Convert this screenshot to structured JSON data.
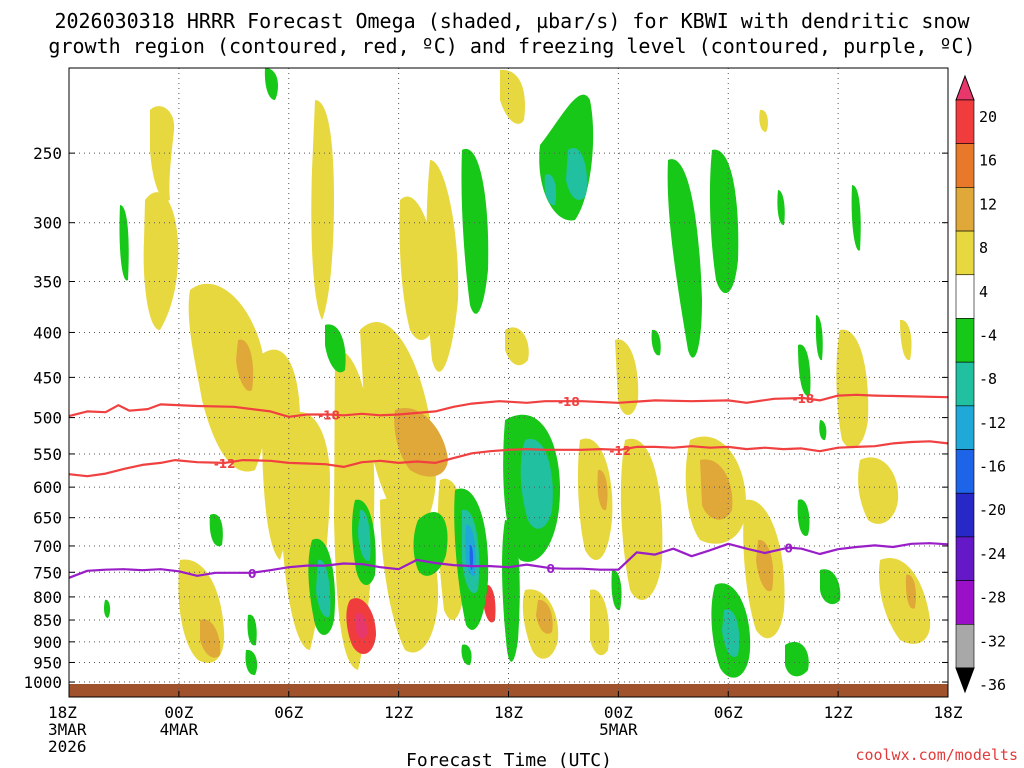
{
  "chart_data": {
    "type": "contour",
    "title_line1": "2026030318 HRRR Forecast Omega (shaded, µbar/s) for KBWI with dendritic snow",
    "title_line2": "growth region (contoured, red, ºC) and freezing level (contoured, purple, ºC)",
    "xlabel": "Forecast Time (UTC)",
    "credit": "coolwx.com/modelts",
    "x_hours": [
      0,
      48
    ],
    "x_ticks": [
      {
        "h": 0,
        "lines": [
          "18Z",
          "3MAR",
          "2026"
        ]
      },
      {
        "h": 6,
        "lines": [
          "00Z",
          "4MAR"
        ]
      },
      {
        "h": 12,
        "lines": [
          "06Z"
        ]
      },
      {
        "h": 18,
        "lines": [
          "12Z"
        ]
      },
      {
        "h": 24,
        "lines": [
          "18Z"
        ]
      },
      {
        "h": 30,
        "lines": [
          "00Z",
          "5MAR"
        ]
      },
      {
        "h": 36,
        "lines": [
          "06Z"
        ]
      },
      {
        "h": 42,
        "lines": [
          "12Z"
        ]
      },
      {
        "h": 48,
        "lines": [
          "18Z"
        ]
      }
    ],
    "y_ticks": [
      250,
      300,
      350,
      400,
      450,
      500,
      550,
      600,
      650,
      700,
      750,
      800,
      850,
      900,
      950,
      1000
    ],
    "pressure_range_hpa": [
      200,
      1040
    ],
    "colorbar": {
      "labels": [
        "20",
        "16",
        "12",
        "8",
        "4",
        "-4",
        "-8",
        "-12",
        "-16",
        "-20",
        "-24",
        "-28",
        "-32",
        "-36"
      ],
      "colors": [
        "#e8376a",
        "#f03c3c",
        "#e8782a",
        "#e0a838",
        "#e8d840",
        "#ffffff",
        "#18c818",
        "#20c0a0",
        "#20a8d8",
        "#1e64e8",
        "#2828c8",
        "#6418c8",
        "#9a10c8",
        "#a8a8a8",
        "#000000"
      ]
    },
    "series": [
      {
        "name": "-18",
        "color": "#f04040",
        "label_at_hours": [
          14.2,
          27.3,
          40.1
        ],
        "points": [
          [
            0,
            498
          ],
          [
            1,
            492
          ],
          [
            2,
            493
          ],
          [
            2.7,
            484
          ],
          [
            3.3,
            491
          ],
          [
            4.3,
            489
          ],
          [
            5,
            483
          ],
          [
            7,
            485
          ],
          [
            9,
            486
          ],
          [
            11,
            492
          ],
          [
            12,
            499
          ],
          [
            13,
            496
          ],
          [
            14.2,
            496
          ],
          [
            15,
            497
          ],
          [
            16,
            495
          ],
          [
            17,
            497
          ],
          [
            18,
            496
          ],
          [
            20,
            492
          ],
          [
            21,
            486
          ],
          [
            22,
            482
          ],
          [
            23.5,
            479
          ],
          [
            25,
            481
          ],
          [
            26,
            479
          ],
          [
            27.3,
            479
          ],
          [
            28,
            479
          ],
          [
            30,
            481
          ],
          [
            32,
            478
          ],
          [
            34,
            479
          ],
          [
            36,
            478
          ],
          [
            37,
            481
          ],
          [
            38.5,
            476
          ],
          [
            40.1,
            475
          ],
          [
            41,
            478
          ],
          [
            42,
            472
          ],
          [
            43,
            471
          ],
          [
            44,
            472
          ],
          [
            46,
            473
          ],
          [
            48,
            474
          ]
        ]
      },
      {
        "name": "-12",
        "color": "#f04040",
        "label_at_hours": [
          8.5,
          30.1
        ],
        "points": [
          [
            0,
            580
          ],
          [
            1,
            583
          ],
          [
            2,
            579
          ],
          [
            3,
            572
          ],
          [
            4,
            566
          ],
          [
            5,
            563
          ],
          [
            5.8,
            559
          ],
          [
            7,
            562
          ],
          [
            8.5,
            563
          ],
          [
            9.5,
            559
          ],
          [
            11,
            560
          ],
          [
            12,
            563
          ],
          [
            13,
            564
          ],
          [
            14,
            565
          ],
          [
            15,
            569
          ],
          [
            16,
            562
          ],
          [
            17,
            560
          ],
          [
            18,
            563
          ],
          [
            19,
            561
          ],
          [
            20,
            563
          ],
          [
            21,
            556
          ],
          [
            22,
            549
          ],
          [
            23,
            546
          ],
          [
            24,
            544
          ],
          [
            25,
            543
          ],
          [
            26,
            544
          ],
          [
            27,
            544
          ],
          [
            28,
            544
          ],
          [
            29,
            543
          ],
          [
            30.1,
            544
          ],
          [
            31,
            540
          ],
          [
            32,
            540
          ],
          [
            33,
            541
          ],
          [
            34,
            539
          ],
          [
            35,
            541
          ],
          [
            36,
            540
          ],
          [
            37,
            543
          ],
          [
            38,
            541
          ],
          [
            39,
            543
          ],
          [
            40,
            542
          ],
          [
            41,
            546
          ],
          [
            42,
            541
          ],
          [
            43,
            540
          ],
          [
            44,
            539
          ],
          [
            45,
            535
          ],
          [
            46,
            533
          ],
          [
            47,
            532
          ],
          [
            48,
            535
          ]
        ]
      },
      {
        "name": "0",
        "color": "#9a1ec8",
        "label_at_hours": [
          10,
          26.3,
          39.3
        ],
        "points": [
          [
            0,
            761
          ],
          [
            1,
            747
          ],
          [
            2,
            745
          ],
          [
            3,
            744
          ],
          [
            4,
            746
          ],
          [
            5,
            744
          ],
          [
            6,
            748
          ],
          [
            7,
            757
          ],
          [
            8,
            751
          ],
          [
            10,
            751
          ],
          [
            11,
            746
          ],
          [
            12,
            740
          ],
          [
            13,
            737
          ],
          [
            14,
            737
          ],
          [
            15,
            733
          ],
          [
            16,
            734
          ],
          [
            17,
            740
          ],
          [
            18,
            744
          ],
          [
            19,
            726
          ],
          [
            20,
            732
          ],
          [
            21,
            736
          ],
          [
            22,
            738
          ],
          [
            23,
            738
          ],
          [
            24,
            740
          ],
          [
            25,
            735
          ],
          [
            26.3,
            742
          ],
          [
            27,
            743
          ],
          [
            28,
            743
          ],
          [
            29,
            745
          ],
          [
            30,
            745
          ],
          [
            31,
            712
          ],
          [
            32,
            716
          ],
          [
            33,
            705
          ],
          [
            34,
            719
          ],
          [
            35,
            708
          ],
          [
            36,
            696
          ],
          [
            37,
            705
          ],
          [
            38,
            713
          ],
          [
            39.3,
            703
          ],
          [
            40,
            705
          ],
          [
            41,
            715
          ],
          [
            42,
            706
          ],
          [
            43,
            702
          ],
          [
            44,
            699
          ],
          [
            45,
            702
          ],
          [
            46,
            696
          ],
          [
            47,
            695
          ],
          [
            48,
            697
          ]
        ]
      }
    ]
  }
}
